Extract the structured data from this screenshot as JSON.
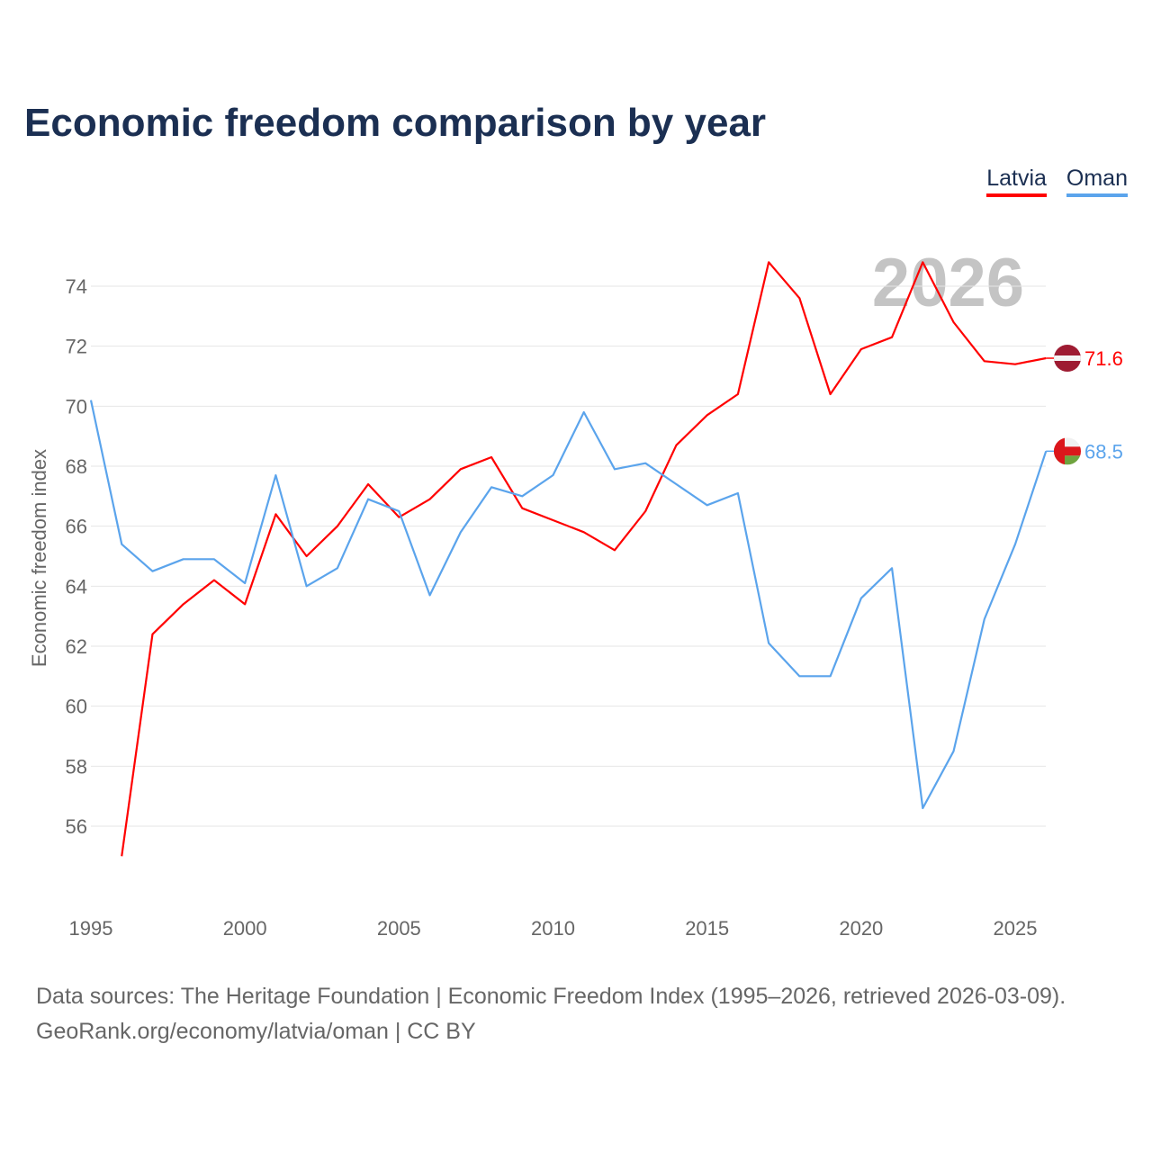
{
  "title": "Economic freedom comparison by year",
  "legend": [
    {
      "name": "Latvia",
      "color": "#ff0000"
    },
    {
      "name": "Oman",
      "color": "#5ba4ec"
    }
  ],
  "footer": {
    "line1": "Data sources: The Heritage Foundation | Economic Freedom Index (1995–2026, retrieved 2026-03-09).",
    "line2": "GeoRank.org/economy/latvia/oman | CC BY"
  },
  "chart_data": {
    "type": "line",
    "title": "Economic freedom comparison by year",
    "ylabel": "Economic freedom index",
    "xlabel": "",
    "watermark_year": "2026",
    "xlim": [
      1995,
      2026
    ],
    "ylim": [
      54,
      76
    ],
    "xticks": [
      1995,
      2000,
      2005,
      2010,
      2015,
      2020,
      2025
    ],
    "yticks": [
      56,
      58,
      60,
      62,
      64,
      66,
      68,
      70,
      72,
      74
    ],
    "grid": true,
    "legend_position": "top-right",
    "series": [
      {
        "name": "Latvia",
        "color": "#ff0000",
        "end_label": "71.6",
        "x": [
          1996,
          1997,
          1998,
          1999,
          2000,
          2001,
          2002,
          2003,
          2004,
          2005,
          2006,
          2007,
          2008,
          2009,
          2010,
          2011,
          2012,
          2013,
          2014,
          2015,
          2016,
          2017,
          2018,
          2019,
          2020,
          2021,
          2022,
          2023,
          2024,
          2025,
          2026
        ],
        "values": [
          55.0,
          62.4,
          63.4,
          64.2,
          63.4,
          66.4,
          65.0,
          66.0,
          67.4,
          66.3,
          66.9,
          67.9,
          68.3,
          66.6,
          66.2,
          65.8,
          65.2,
          66.5,
          68.7,
          69.7,
          70.4,
          74.8,
          73.6,
          70.4,
          71.9,
          72.3,
          74.8,
          72.8,
          71.5,
          71.4,
          71.6
        ]
      },
      {
        "name": "Oman",
        "color": "#5ba4ec",
        "end_label": "68.5",
        "x": [
          1995,
          1996,
          1997,
          1998,
          1999,
          2000,
          2001,
          2002,
          2003,
          2004,
          2005,
          2006,
          2007,
          2008,
          2009,
          2010,
          2011,
          2012,
          2013,
          2014,
          2015,
          2016,
          2017,
          2018,
          2019,
          2020,
          2021,
          2022,
          2023,
          2024,
          2025,
          2026
        ],
        "values": [
          70.2,
          65.4,
          64.5,
          64.9,
          64.9,
          64.1,
          67.7,
          64.0,
          64.6,
          66.9,
          66.5,
          63.7,
          65.8,
          67.3,
          67.0,
          67.7,
          69.8,
          67.9,
          68.1,
          67.4,
          66.7,
          67.1,
          62.1,
          61.0,
          61.0,
          63.6,
          64.6,
          56.6,
          58.5,
          62.9,
          65.4,
          68.5
        ]
      }
    ]
  }
}
